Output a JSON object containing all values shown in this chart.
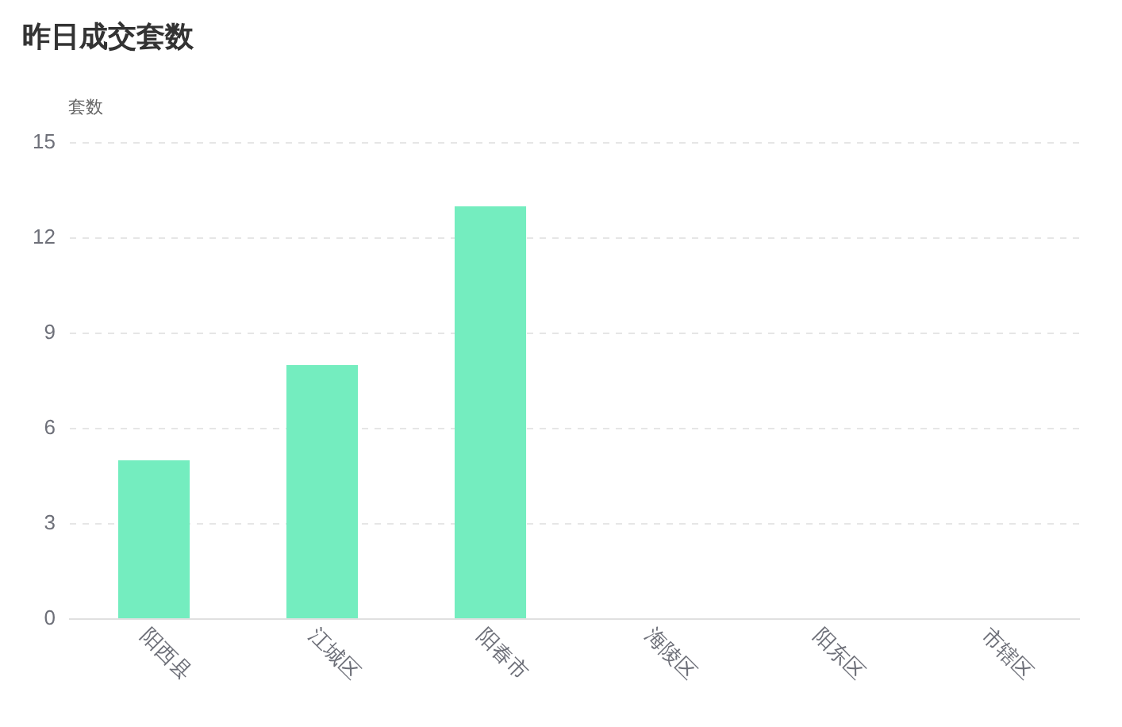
{
  "chart_data": {
    "type": "bar",
    "title": "昨日成交套数",
    "ylabel": "套数",
    "categories": [
      "阳西县",
      "江城区",
      "阳春市",
      "海陵区",
      "阳东区",
      "市辖区"
    ],
    "values": [
      5,
      8,
      13,
      0,
      0,
      0
    ],
    "color": "#74edbf",
    "ylim": [
      0,
      15
    ],
    "yticks": [
      0,
      3,
      6,
      9,
      12,
      15
    ],
    "grid": "y"
  }
}
